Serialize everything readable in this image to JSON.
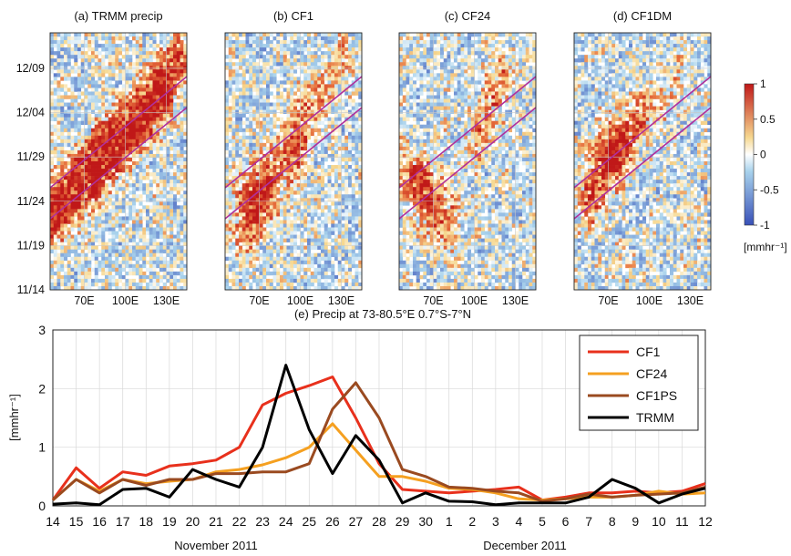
{
  "colorbar": {
    "ticks": [
      1,
      0.5,
      0,
      -0.5,
      -1
    ],
    "unit_label": "[mmhr⁻¹]",
    "range": [
      -1,
      1
    ],
    "low_color": "#3850b8",
    "mid_color": "#ffffff",
    "high_color": "#c01818"
  },
  "band_color": "#b0309c",
  "chart_data": [
    {
      "type": "heatmap",
      "title": "(a) TRMM precip",
      "x_ticks": [
        "70E",
        "100E",
        "130E"
      ],
      "y_ticks": [
        "12/09",
        "12/04",
        "11/29",
        "11/24",
        "11/19",
        "11/14"
      ],
      "show_y_ticks": true,
      "x_range_deg": [
        55,
        155
      ],
      "y_range_days": [
        0,
        29
      ],
      "features": [
        {
          "x0": 55,
          "y0": 9.5,
          "x1": 150,
          "y1": 26,
          "width": 6,
          "amp": 0.9
        },
        {
          "x0": 55,
          "y0": 6.5,
          "x1": 140,
          "y1": 21,
          "width": 5,
          "amp": 0.7
        }
      ]
    },
    {
      "type": "heatmap",
      "title": "(b) CF1",
      "x_ticks": [
        "70E",
        "100E",
        "130E"
      ],
      "show_y_ticks": false,
      "x_range_deg": [
        55,
        155
      ],
      "y_range_days": [
        0,
        29
      ],
      "features": [
        {
          "x0": 73,
          "y0": 8.5,
          "x1": 85,
          "y1": 12,
          "width": 8,
          "amp": 0.95
        },
        {
          "x0": 105,
          "y0": 16,
          "x1": 112,
          "y1": 19,
          "width": 7,
          "amp": 0.8
        },
        {
          "x0": 125,
          "y0": 22,
          "x1": 140,
          "y1": 26,
          "width": 6,
          "amp": 0.45
        }
      ]
    },
    {
      "type": "heatmap",
      "title": "(c) CF24",
      "x_ticks": [
        "70E",
        "100E",
        "130E"
      ],
      "show_y_ticks": false,
      "x_range_deg": [
        55,
        155
      ],
      "y_range_days": [
        0,
        29
      ],
      "features": [
        {
          "x0": 72,
          "y0": 12,
          "x1": 88,
          "y1": 8,
          "width": 7,
          "amp": 0.7
        },
        {
          "x0": 115,
          "y0": 18,
          "x1": 130,
          "y1": 24,
          "width": 6,
          "amp": 0.6
        },
        {
          "x0": 58,
          "y0": 13,
          "x1": 70,
          "y1": 12,
          "width": 5,
          "amp": 0.4
        }
      ]
    },
    {
      "type": "heatmap",
      "title": "(d) CF1DM",
      "x_ticks": [
        "70E",
        "100E",
        "130E"
      ],
      "show_y_ticks": false,
      "x_range_deg": [
        55,
        155
      ],
      "y_range_days": [
        0,
        29
      ],
      "features": [
        {
          "x0": 68,
          "y0": 11,
          "x1": 80,
          "y1": 15,
          "width": 7,
          "amp": 0.95
        },
        {
          "x0": 85,
          "y0": 15.5,
          "x1": 100,
          "y1": 19,
          "width": 6,
          "amp": 0.75
        },
        {
          "x0": 110,
          "y0": 20,
          "x1": 130,
          "y1": 24,
          "width": 5,
          "amp": 0.45
        }
      ]
    },
    {
      "type": "line",
      "title": "(e) Precip at 73-80.5°E 0.7°S-7°N",
      "ylabel": "[mmhr⁻¹]",
      "xlabel_left": "November 2011",
      "xlabel_right": "December 2011",
      "categories": [
        "14",
        "15",
        "16",
        "17",
        "18",
        "19",
        "20",
        "21",
        "22",
        "23",
        "24",
        "25",
        "26",
        "27",
        "28",
        "29",
        "30",
        "1",
        "2",
        "3",
        "4",
        "5",
        "6",
        "7",
        "8",
        "9",
        "10",
        "11",
        "12"
      ],
      "ylim": [
        0,
        3
      ],
      "y_ticks": [
        0,
        1,
        2,
        3
      ],
      "grid": true,
      "legend_position": "top-right",
      "series": [
        {
          "name": "CF1",
          "color": "#e8301c",
          "values": [
            0.1,
            0.65,
            0.3,
            0.58,
            0.52,
            0.68,
            0.72,
            0.78,
            1.0,
            1.72,
            1.92,
            2.05,
            2.2,
            1.5,
            0.72,
            0.28,
            0.25,
            0.22,
            0.25,
            0.28,
            0.32,
            0.1,
            0.15,
            0.22,
            0.22,
            0.25,
            0.22,
            0.25,
            0.38
          ]
        },
        {
          "name": "CF24",
          "color": "#f5a020",
          "values": [
            0.1,
            0.45,
            0.25,
            0.45,
            0.38,
            0.42,
            0.45,
            0.58,
            0.62,
            0.7,
            0.82,
            1.0,
            1.4,
            0.95,
            0.5,
            0.5,
            0.42,
            0.3,
            0.28,
            0.22,
            0.12,
            0.1,
            0.12,
            0.15,
            0.15,
            0.18,
            0.25,
            0.2,
            0.22
          ]
        },
        {
          "name": "CF1PS",
          "color": "#9a4a20",
          "values": [
            0.1,
            0.45,
            0.22,
            0.45,
            0.35,
            0.45,
            0.45,
            0.55,
            0.55,
            0.58,
            0.58,
            0.72,
            1.65,
            2.1,
            1.5,
            0.62,
            0.5,
            0.32,
            0.3,
            0.25,
            0.22,
            0.08,
            0.12,
            0.2,
            0.15,
            0.18,
            0.2,
            0.22,
            0.32
          ]
        },
        {
          "name": "TRMM",
          "color": "#000000",
          "values": [
            0.03,
            0.05,
            0.02,
            0.28,
            0.3,
            0.15,
            0.62,
            0.45,
            0.32,
            1.0,
            2.4,
            1.3,
            0.55,
            1.2,
            0.78,
            0.05,
            0.22,
            0.08,
            0.07,
            0.02,
            0.05,
            0.05,
            0.05,
            0.15,
            0.45,
            0.3,
            0.05,
            0.2,
            0.3
          ]
        }
      ]
    }
  ]
}
